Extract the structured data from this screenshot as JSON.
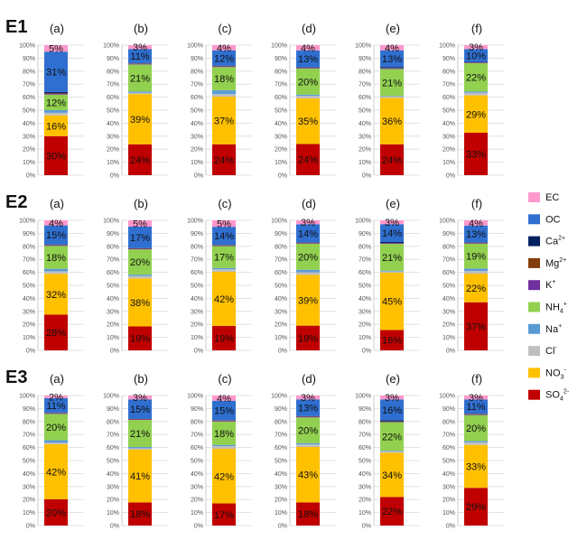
{
  "chart_data": {
    "type": "bar",
    "stacked": true,
    "percent_axis": true,
    "y_ticks": [
      "0%",
      "10%",
      "20%",
      "30%",
      "40%",
      "50%",
      "60%",
      "70%",
      "80%",
      "90%",
      "100%"
    ],
    "components": [
      "SO4",
      "NO3",
      "Cl",
      "Na",
      "NH4",
      "K",
      "Mg",
      "Ca",
      "OC",
      "EC"
    ],
    "colors": {
      "SO4": "#c00000",
      "NO3": "#ffc000",
      "Cl": "#bfbfbf",
      "Na": "#5b9bd5",
      "NH4": "#92d050",
      "K": "#7030a0",
      "Mg": "#843c0c",
      "Ca": "#002060",
      "OC": "#2f6fd0",
      "EC": "#ff99cc"
    },
    "legend": [
      {
        "key": "EC",
        "base": "EC",
        "sub": "",
        "sup": ""
      },
      {
        "key": "OC",
        "base": "OC",
        "sub": "",
        "sup": ""
      },
      {
        "key": "Ca",
        "base": "Ca",
        "sub": "",
        "sup": "2+"
      },
      {
        "key": "Mg",
        "base": "Mg",
        "sub": "",
        "sup": "2+"
      },
      {
        "key": "K",
        "base": "K",
        "sub": "",
        "sup": "+"
      },
      {
        "key": "NH4",
        "base": "NH",
        "sub": "4",
        "sup": "+"
      },
      {
        "key": "Na",
        "base": "Na",
        "sub": "",
        "sup": "+"
      },
      {
        "key": "Cl",
        "base": "Cl",
        "sub": "",
        "sup": "-"
      },
      {
        "key": "NO3",
        "base": "NO",
        "sub": "3",
        "sup": "-"
      },
      {
        "key": "SO4",
        "base": "SO",
        "sub": "4",
        "sup": "2-"
      }
    ],
    "rows": [
      {
        "label": "E1",
        "panels": [
          {
            "label": "(a)",
            "values": [
              30,
              16,
              2,
              2,
              12,
              0.8,
              0.4,
              0.8,
              31,
              5
            ],
            "labels": [
              "30%",
              "16%",
              "",
              "",
              "12%",
              "",
              "",
              "",
              "31%",
              "5%"
            ]
          },
          {
            "label": "(b)",
            "values": [
              24,
              39,
              1,
              1,
              21,
              0.5,
              0.3,
              0.2,
              11,
              3
            ],
            "labels": [
              "24%",
              "39%",
              "",
              "",
              "21%",
              "",
              "",
              "",
              "11%",
              "3%"
            ]
          },
          {
            "label": "(c)",
            "values": [
              24,
              37,
              2,
              3,
              18,
              0.5,
              0.3,
              0.2,
              12,
              4
            ],
            "labels": [
              "24%",
              "37%",
              "",
              "",
              "18%",
              "",
              "",
              "",
              "12%",
              "4%"
            ]
          },
          {
            "label": "(d)",
            "values": [
              24,
              35,
              2,
              1,
              20,
              0.5,
              0.3,
              0.2,
              13,
              4
            ],
            "labels": [
              "24%",
              "35%",
              "",
              "",
              "20%",
              "",
              "",
              "",
              "13%",
              "4%"
            ]
          },
          {
            "label": "(e)",
            "values": [
              24,
              36,
              1,
              0.5,
              21,
              0.5,
              0.2,
              0.8,
              13,
              4
            ],
            "labels": [
              "24%",
              "36%",
              "",
              "",
              "21%",
              "",
              "",
              "",
              "13%",
              "4%"
            ]
          },
          {
            "label": "(f)",
            "values": [
              33,
              29,
              2,
              1,
              22,
              0.5,
              0.2,
              0.3,
              10,
              3
            ],
            "labels": [
              "33%",
              "29%",
              "",
              "",
              "22%",
              "",
              "",
              "",
              "10%",
              "3%"
            ]
          }
        ]
      },
      {
        "label": "E2",
        "panels": [
          {
            "label": "(a)",
            "values": [
              28,
              32,
              2,
              2,
              18,
              0.5,
              0.3,
              0.2,
              15,
              4
            ],
            "labels": [
              "28%",
              "32%",
              "",
              "",
              "18%",
              "",
              "",
              "",
              "15%",
              "4%"
            ]
          },
          {
            "label": "(b)",
            "values": [
              19,
              38,
              2,
              1,
              20,
              0.5,
              0.3,
              0.2,
              17,
              5
            ],
            "labels": [
              "19%",
              "38%",
              "",
              "",
              "20%",
              "",
              "",
              "",
              "17%",
              "5%"
            ]
          },
          {
            "label": "(c)",
            "values": [
              19,
              42,
              2,
              1,
              17,
              0.5,
              0.3,
              0.2,
              14,
              5
            ],
            "labels": [
              "19%",
              "42%",
              "",
              "",
              "17%",
              "",
              "",
              "",
              "14%",
              "5%"
            ]
          },
          {
            "label": "(d)",
            "values": [
              19,
              39,
              2,
              2,
              20,
              0.5,
              0.3,
              0.2,
              14,
              3
            ],
            "labels": [
              "19%",
              "39%",
              "",
              "",
              "20%",
              "",
              "",
              "",
              "14%",
              "3%"
            ]
          },
          {
            "label": "(e)",
            "values": [
              16,
              45,
              1,
              0.5,
              21,
              0.5,
              0.2,
              0.8,
              14,
              3
            ],
            "labels": [
              "16%",
              "45%",
              "",
              "",
              "21%",
              "",
              "",
              "",
              "14%",
              "3%"
            ]
          },
          {
            "label": "(f)",
            "values": [
              37,
              22,
              2,
              2,
              19,
              0.5,
              0.3,
              0.2,
              13,
              4
            ],
            "labels": [
              "37%",
              "22%",
              "",
              "",
              "19%",
              "",
              "",
              "",
              "13%",
              "4%"
            ]
          }
        ]
      },
      {
        "label": "E3",
        "panels": [
          {
            "label": "(a)",
            "values": [
              20,
              42,
              1,
              2,
              20,
              0.5,
              0.3,
              0.2,
              11,
              2
            ],
            "labels": [
              "20%",
              "42%",
              "",
              "",
              "20%",
              "",
              "",
              "",
              "11%",
              "2%"
            ]
          },
          {
            "label": "(b)",
            "values": [
              18,
              41,
              1,
              1,
              21,
              0.5,
              0.3,
              0.2,
              15,
              3
            ],
            "labels": [
              "18%",
              "41%",
              "",
              "",
              "21%",
              "",
              "",
              "",
              "15%",
              "3%"
            ]
          },
          {
            "label": "(c)",
            "values": [
              17,
              42,
              2,
              1,
              18,
              0.5,
              0.3,
              0.2,
              15,
              4
            ],
            "labels": [
              "17%",
              "42%",
              "",
              "",
              "18%",
              "",
              "",
              "",
              "15%",
              "4%"
            ]
          },
          {
            "label": "(d)",
            "values": [
              18,
              43,
              2,
              1,
              20,
              0.5,
              0.3,
              0.2,
              13,
              3
            ],
            "labels": [
              "18%",
              "43%",
              "",
              "",
              "20%",
              "",
              "",
              "",
              "13%",
              "3%"
            ]
          },
          {
            "label": "(e)",
            "values": [
              22,
              34,
              1,
              0.5,
              22,
              0.5,
              0.2,
              0.8,
              16,
              3
            ],
            "labels": [
              "22%",
              "34%",
              "",
              "",
              "22%",
              "",
              "",
              "",
              "16%",
              "3%"
            ]
          },
          {
            "label": "(f)",
            "values": [
              29,
              33,
              2,
              1,
              20,
              0.5,
              0.3,
              0.2,
              11,
              3
            ],
            "labels": [
              "29%",
              "33%",
              "",
              "",
              "20%",
              "",
              "",
              "",
              "11%",
              "3%"
            ]
          }
        ]
      }
    ]
  }
}
